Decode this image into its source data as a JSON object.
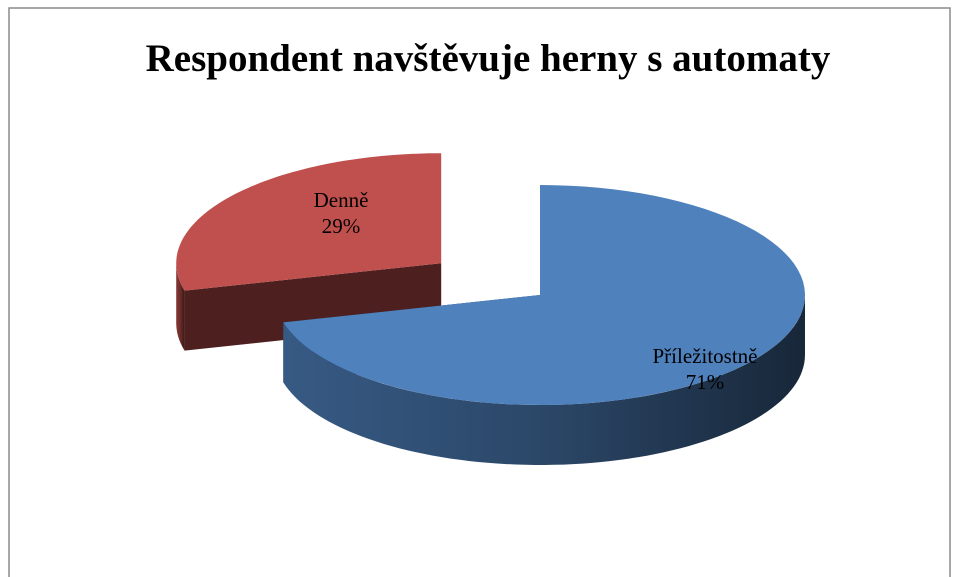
{
  "chart_data": {
    "type": "pie",
    "title": "Respondent navštěvuje herny s automaty",
    "categories": [
      "Příležitostně",
      "Denně"
    ],
    "values": [
      71,
      29
    ],
    "value_labels": [
      "71%",
      "29%"
    ],
    "colors": [
      "#4f81bd",
      "#c0504d"
    ]
  }
}
